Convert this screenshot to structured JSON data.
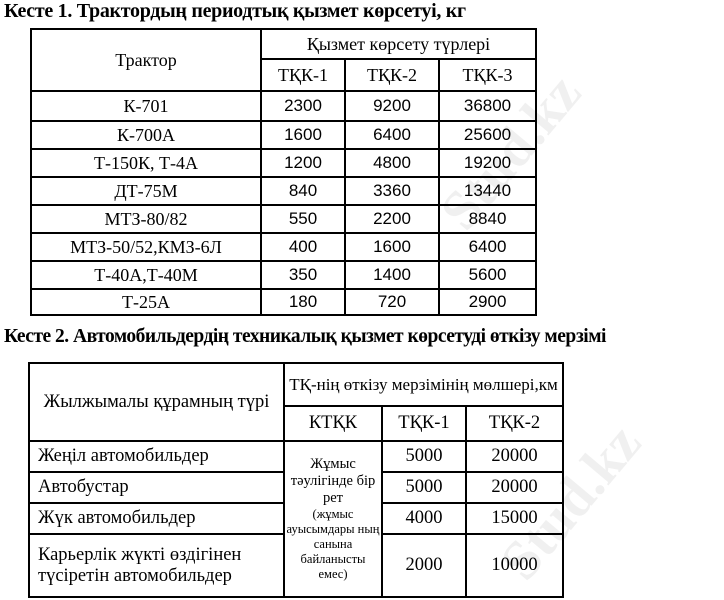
{
  "table1": {
    "title": "Кесте 1. Трактордың периодтық қызмет көрсетуі, кг",
    "header_tractor": "Трактор",
    "header_group": "Қызмет көрсету түрлері",
    "columns": [
      "ТҚК-1",
      "ТҚК-2",
      "ТҚК-3"
    ],
    "rows": [
      {
        "name": "К-701",
        "values": [
          "2300",
          "9200",
          "36800"
        ]
      },
      {
        "name": "К-700А",
        "values": [
          "1600",
          "6400",
          "25600"
        ]
      },
      {
        "name": "Т-150К, Т-4А",
        "values": [
          "1200",
          "4800",
          "19200"
        ]
      },
      {
        "name": "ДТ-75М",
        "values": [
          "840",
          "3360",
          "13440"
        ]
      },
      {
        "name": "МТЗ-80/82",
        "values": [
          "550",
          "2200",
          "8840"
        ]
      },
      {
        "name": "МТЗ-50/52,КМЗ-6Л",
        "values": [
          "400",
          "1600",
          "6400"
        ]
      },
      {
        "name": "Т-40А,Т-40М",
        "values": [
          "350",
          "1400",
          "5600"
        ]
      },
      {
        "name": "Т-25А",
        "values": [
          "180",
          "720",
          "2900"
        ]
      }
    ]
  },
  "table2": {
    "title": "Кесте 2. Автомобильдердің техникалық қызмет көрсетуді өткізу мерзімі",
    "header_type": "Жылжымалы құрамның түрі",
    "header_group": "ТҚ-нің өткізу мерзімінің мөлшері,км",
    "columns": [
      "КТҚК",
      "ТҚК-1",
      "ТҚК-2"
    ],
    "ktqk_note_main": "Жұмыс тәулігінде бір рет",
    "ktqk_note_sub": "(жұмыс ауысымдары ның санына байланысты емес)",
    "rows": [
      {
        "name": "Жеңіл автомобильдер",
        "values": [
          "5000",
          "20000"
        ]
      },
      {
        "name": "Автобустар",
        "values": [
          "5000",
          "20000"
        ]
      },
      {
        "name": "Жүк автомобильдер",
        "values": [
          "4000",
          "15000"
        ]
      },
      {
        "name": "Карьерлік жүкті өздігінен түсіретін автомобильдер",
        "values": [
          "2000",
          "10000"
        ]
      }
    ]
  },
  "watermark": "Stud.kz"
}
